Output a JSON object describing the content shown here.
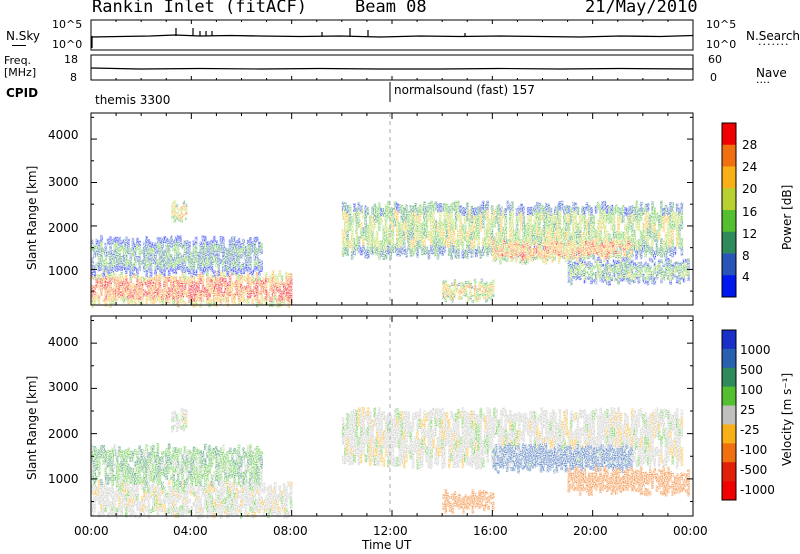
{
  "header": {
    "station": "Rankin Inlet (fitACF)",
    "beam": "Beam 08",
    "date": "21/May/2010"
  },
  "strips": {
    "nsky_label": "N.Sky",
    "nsky_ticks": [
      "10^5",
      "10^0"
    ],
    "nsearch_label": "N.Search",
    "nsearch_ticks": [
      "10^5",
      "10^0"
    ],
    "freq_label": "Freq.",
    "freq_unit": "[MHz]",
    "freq_ticks": [
      "18",
      "8"
    ],
    "nave_label": "Nave",
    "nave_ticks": [
      "60",
      "0"
    ],
    "cpid_label": "CPID",
    "cpid_segments": [
      {
        "label": "themis 3300",
        "start": 0
      },
      {
        "label": "normalsound (fast) 157",
        "start": 12
      }
    ]
  },
  "panels": {
    "power": {
      "ylabel": "Slant Range [km]",
      "yticks": [
        "4000",
        "3000",
        "2000",
        "1000"
      ],
      "cbar_label": "Power [dB]",
      "cbar_ticks": [
        "28",
        "24",
        "20",
        "16",
        "12",
        "8",
        "4"
      ],
      "colors": [
        "#0018f0",
        "#2a55b8",
        "#2e8a5a",
        "#54c030",
        "#b8d030",
        "#f8b018",
        "#f07010",
        "#f00000"
      ]
    },
    "velocity": {
      "ylabel": "Slant Range [km]",
      "yticks": [
        "4000",
        "3000",
        "2000",
        "1000"
      ],
      "cbar_label": "Velocity [m s⁻¹]",
      "cbar_ticks": [
        "1000",
        "500",
        "100",
        "25",
        "-25",
        "-100",
        "-500",
        "-1000"
      ],
      "colors": [
        "#1830c8",
        "#2a60b0",
        "#2e8a5a",
        "#54c030",
        "#c0c0bc",
        "#f8b018",
        "#f07010",
        "#e02008",
        "#f00000"
      ]
    }
  },
  "time_axis": {
    "label": "Time UT",
    "ticks": [
      "00:00",
      "04:00",
      "08:00",
      "12:00",
      "16:00",
      "20:00",
      "00:00"
    ]
  },
  "chart_data": {
    "type": "heatmap",
    "title": "Rankin Inlet (fitACF)",
    "xlabel": "Time UT",
    "ylabel": "Slant Range [km]",
    "xlim_hours": [
      0,
      24
    ],
    "ylim_km": [
      180,
      4600
    ],
    "echo_regions": [
      {
        "t": [
          0.0,
          8.0
        ],
        "r": [
          200,
          900
        ],
        "power_db": 28,
        "velocity": 0
      },
      {
        "t": [
          0.0,
          6.8
        ],
        "r": [
          900,
          1700
        ],
        "power_db": 10,
        "velocity": 50
      },
      {
        "t": [
          3.2,
          3.8
        ],
        "r": [
          2100,
          2500
        ],
        "power_db": 20,
        "velocity": 0
      },
      {
        "t": [
          10.0,
          23.5
        ],
        "r": [
          1300,
          2500
        ],
        "power_db": 16,
        "velocity": 0
      },
      {
        "t": [
          16.0,
          21.5
        ],
        "r": [
          1200,
          1700
        ],
        "power_db": 24,
        "velocity": 500
      },
      {
        "t": [
          14.0,
          16.0
        ],
        "r": [
          300,
          700
        ],
        "power_db": 20,
        "velocity": -100
      },
      {
        "t": [
          19.0,
          23.8
        ],
        "r": [
          700,
          1200
        ],
        "power_db": 12,
        "velocity": -100
      }
    ]
  }
}
